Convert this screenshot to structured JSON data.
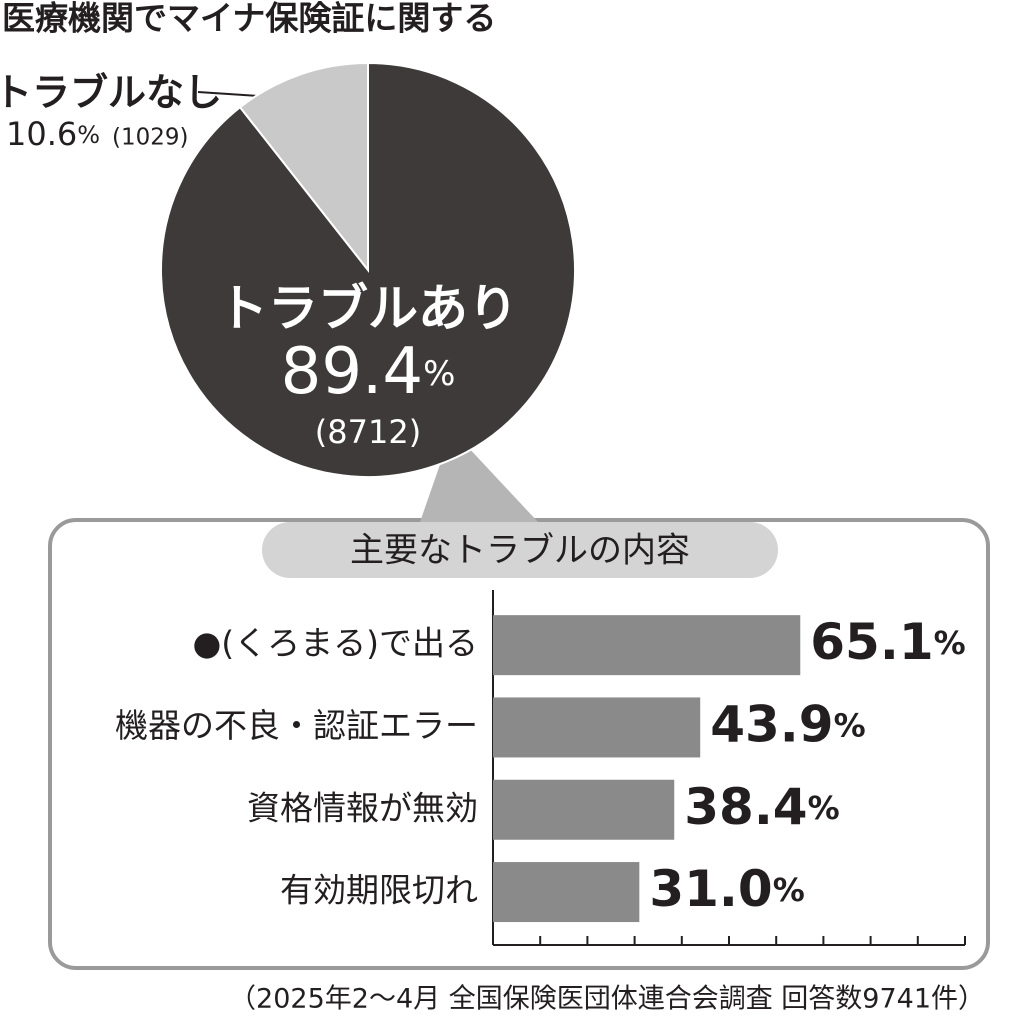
{
  "chart_data": [
    {
      "type": "pie",
      "title": "医療機関でマイナ保険証に関する",
      "categories": [
        "トラブルあり",
        "トラブルなし"
      ],
      "values": [
        89.4,
        10.6
      ],
      "value_labels": [
        "89.4%",
        "10.6%"
      ],
      "count_labels": [
        "(8712)",
        "(1029)"
      ],
      "colors": [
        "#3e3a3a",
        "#c9c9c9"
      ]
    },
    {
      "type": "bar",
      "orientation": "horizontal",
      "title": "主要なトラブルの内容",
      "categories": [
        "●(くろまる)で出る",
        "機器の不良・認証エラー",
        "資格情報が無効",
        "有効期限切れ"
      ],
      "values": [
        65.1,
        43.9,
        38.4,
        31.0
      ],
      "value_labels": [
        "65.1%",
        "43.9%",
        "38.4%",
        "31.0%"
      ],
      "color": "#8a8a8a",
      "xlim": [
        0,
        100
      ],
      "xticks": [
        0,
        10,
        20,
        30,
        40,
        50,
        60,
        70,
        80,
        90,
        100
      ]
    }
  ],
  "footnote": "（2025年2～4月 全国保険医団体連合会調査 回答数9741件）"
}
